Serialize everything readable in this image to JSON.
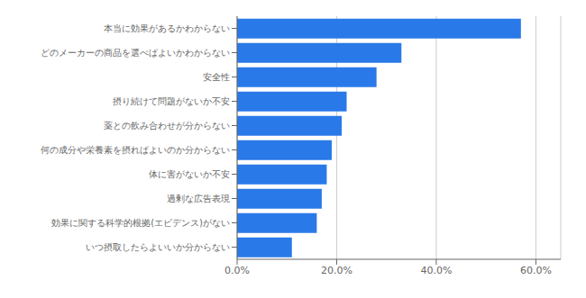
{
  "chart_data": {
    "type": "bar",
    "orientation": "horizontal",
    "categories": [
      "いつ摂取したらよいいか分からない",
      "効果に関する科学的根拠(エビデンス)がない",
      "過剰な広告表現",
      "体に害がないか不安",
      "何の成分や栄養素を摂ればよいのか分からない",
      "薬との飲み合わせが分からない",
      "摂り続けて問題がないか不安",
      "安全性",
      "どのメーカーの商品を選べばよいかわからない",
      "本当に効果があるかわからない"
    ],
    "values": [
      11.0,
      16.0,
      17.0,
      18.0,
      19.0,
      21.0,
      22.0,
      28.0,
      33.0,
      57.0
    ],
    "color": "#2979e8",
    "xlim": [
      0,
      65
    ],
    "xticks": [
      {
        "value": 0,
        "label": "0.0%"
      },
      {
        "value": 20,
        "label": "20.0%"
      },
      {
        "value": 40,
        "label": "40.0%"
      },
      {
        "value": 60,
        "label": "60.0%"
      }
    ],
    "grid": true
  }
}
